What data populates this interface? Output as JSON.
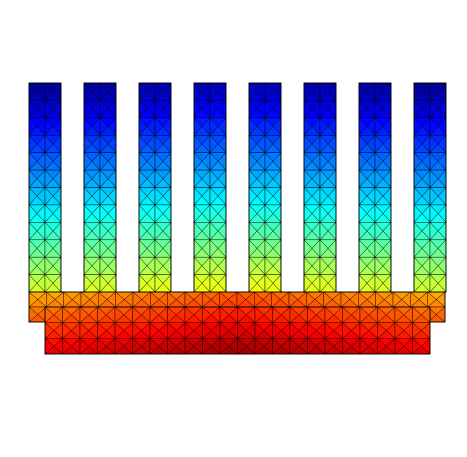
{
  "figure": {
    "kind": "finite-element temperature field on a heat-sink cross-section",
    "fin_count": 8,
    "colormap": "jet",
    "colormap_stops": [
      "#00007f",
      "#0000ff",
      "#007fff",
      "#00ffff",
      "#7fff7f",
      "#ffff00",
      "#ff7f00",
      "#ff0000",
      "#7f0000"
    ],
    "mesh_line_color": "#000000",
    "background": "#ffffff"
  }
}
